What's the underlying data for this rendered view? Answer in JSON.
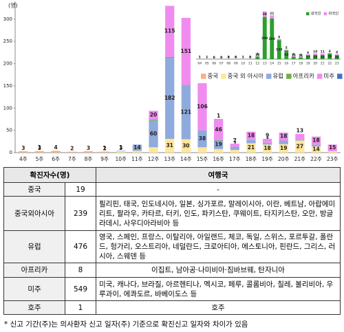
{
  "chart_data": [
    {
      "type": "bar",
      "stacked": true,
      "y_label": "(명)",
      "categories": [
        "4주",
        "5주",
        "6주",
        "7주",
        "8주",
        "9주",
        "10주",
        "11주",
        "12주",
        "13주",
        "14주",
        "15주",
        "16주",
        "17주",
        "18주",
        "19주",
        "20주",
        "21주",
        "22주",
        "23주"
      ],
      "series": [
        {
          "name": "중국",
          "color": "#f4b183",
          "values": [
            3,
            3,
            4,
            2,
            3,
            2,
            null,
            null,
            null,
            null,
            null,
            null,
            null,
            null,
            null,
            null,
            null,
            null,
            null,
            null
          ]
        },
        {
          "name": "중국 외 아시아",
          "color": "#ffe699",
          "values": [
            null,
            1,
            null,
            null,
            null,
            1,
            3,
            4,
            12,
            31,
            30,
            12,
            8,
            6,
            21,
            18,
            19,
            27,
            14,
            3
          ]
        },
        {
          "name": "유럽",
          "color": "#8faadc",
          "values": [
            null,
            null,
            null,
            null,
            null,
            null,
            1,
            14,
            60,
            182,
            121,
            38,
            19,
            7,
            8,
            4,
            8,
            2,
            4,
            null
          ]
        },
        {
          "name": "아프리카",
          "color": "#70ad47",
          "values": [
            null,
            null,
            null,
            null,
            null,
            null,
            null,
            null,
            2,
            2,
            1,
            null,
            1,
            null,
            null,
            null,
            null,
            null,
            null,
            null
          ]
        },
        {
          "name": "미주",
          "color": "#f08cf0",
          "values": [
            null,
            null,
            null,
            null,
            null,
            null,
            null,
            null,
            20,
            115,
            151,
            106,
            46,
            7,
            18,
            9,
            18,
            13,
            18,
            15
          ]
        },
        {
          "name": "호주",
          "color": "#4472c4",
          "values": [
            null,
            null,
            null,
            null,
            null,
            null,
            null,
            null,
            null,
            null,
            null,
            null,
            1,
            null,
            null,
            null,
            null,
            null,
            null,
            null
          ]
        }
      ],
      "ylim": [
        0,
        340
      ],
      "yticks": [
        0,
        50,
        100,
        150,
        200,
        250,
        300
      ],
      "legend": "right"
    },
    {
      "type": "bar",
      "stacked": true,
      "categories": [
        "04",
        "05",
        "06",
        "07",
        "08",
        "09",
        "10",
        "11",
        "12",
        "13",
        "14",
        "15",
        "16",
        "17",
        "18",
        "19",
        "20",
        "21",
        "22",
        "23"
      ],
      "series": [
        {
          "name": "내국인",
          "color": "#2ca02c",
          "values": [
            1,
            1,
            0,
            0,
            1,
            1,
            1,
            2,
            18,
            290,
            280,
            130,
            60,
            16,
            11,
            27,
            29,
            28,
            38,
            26
          ]
        },
        {
          "name": "외국인",
          "color": "#f08cf0",
          "values": [
            1,
            1,
            0,
            0,
            0,
            0,
            1,
            0,
            4,
            38,
            21,
            8,
            5,
            4,
            4,
            6,
            10,
            11,
            4,
            8
          ]
        }
      ],
      "ylim": [
        0,
        340
      ],
      "legend": "top-right"
    }
  ],
  "table": {
    "header": [
      "확진자수(명)",
      "여행국"
    ],
    "rows": [
      [
        "중국",
        "19",
        "-"
      ],
      [
        "중국외아시아",
        "239",
        "필리핀, 태국, 인도네시아, 일본, 싱가포르, 말레이시아, 이란, 베트남, 아랍에미리트, 팔라우, 카타르, 터키, 인도, 파키스탄, 쿠웨이트, 타지키스탄, 오만, 방글라데시, 사우디아라비아 등"
      ],
      [
        "유럽",
        "476",
        "영국, 스페인, 프랑스, 이탈리아, 아일랜드, 체코, 독일, 스위스, 포르투갈, 폴란드, 헝가리, 오스트리아, 네덜란드, 크로아티아, 에스토니아, 핀란드, 그리스, 러시아, 스웨덴 등"
      ],
      [
        "아프리카",
        "8",
        "이집트, 남아공·나미비아·짐바브웨, 탄자니아"
      ],
      [
        "미주",
        "549",
        "미국, 캐나다, 브라질, 아르헨티나, 멕시코, 페루, 콜롬비아, 칠레, 볼리비아, 우루과이, 에콰도르, 바베이도스 등"
      ],
      [
        "호주",
        "1",
        "호주"
      ]
    ]
  },
  "footnote": "* 신고 기간(주)는 의사환자 신고 일자(주) 기준으로 확진신고 일자와 차이가 있음"
}
